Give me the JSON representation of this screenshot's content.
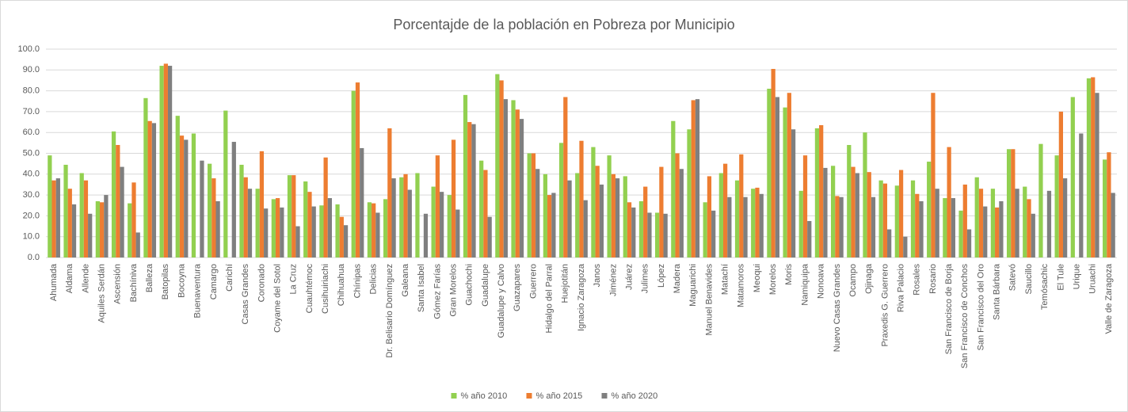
{
  "chart_data": {
    "type": "bar",
    "title": "Porcentajde de la población en Pobreza por Municipio",
    "categories": [
      "Ahumada",
      "Aldama",
      "Allende",
      "Aquiles Serdán",
      "Ascensión",
      "Bachíniva",
      "Balleza",
      "Batopilas",
      "Bocoyna",
      "Buenaventura",
      "Camargo",
      "Carichí",
      "Casas Grandes",
      "Coronado",
      "Coyame del Sotol",
      "La Cruz",
      "Cuauhtémoc",
      "Cusihuiriachi",
      "Chihuahua",
      "Chínipas",
      "Delicias",
      "Dr. Belisario Domínguez",
      "Galeana",
      "Santa Isabel",
      "Gómez Farías",
      "Gran Morelos",
      "Guachochi",
      "Guadalupe",
      "Guadalupe y Calvo",
      "Guazapares",
      "Guerrero",
      "Hidalgo del Parral",
      "Huejotitán",
      "Ignacio Zaragoza",
      "Janos",
      "Jiménez",
      "Juárez",
      "Julimes",
      "López",
      "Madera",
      "Maguarichi",
      "Manuel Benavides",
      "Matachí",
      "Matamoros",
      "Meoqui",
      "Morelos",
      "Moris",
      "Namiquipa",
      "Nonoava",
      "Nuevo Casas Grandes",
      "Ocampo",
      "Ojinaga",
      "Praxedis G. Guerrero",
      "Riva Palacio",
      "Rosales",
      "Rosario",
      "San Francisco de Borja",
      "San Francisco de Conchos",
      "San Francisco del Oro",
      "Santa Bárbara",
      "Satevó",
      "Saucillo",
      "Temósachic",
      "El Tule",
      "Urique",
      "Uruachi",
      "Valle de Zaragoza"
    ],
    "series": [
      {
        "name": "% año 2010",
        "color": "#92d050",
        "values": [
          49,
          44.5,
          40.5,
          27,
          60.5,
          26,
          76.5,
          92,
          68,
          59.5,
          45,
          70.5,
          44.5,
          33,
          28,
          39.5,
          36.5,
          25,
          25.5,
          80,
          26.5,
          28,
          38.5,
          40.5,
          34,
          30,
          78,
          46.5,
          88,
          75.5,
          50,
          40,
          55,
          40.5,
          53,
          49,
          39,
          27,
          21.5,
          65.5,
          61.5,
          26.5,
          40.5,
          37,
          33,
          81,
          72,
          32,
          62,
          44,
          54,
          60,
          37,
          34.5,
          37,
          46,
          28.5,
          22.5,
          38.5,
          33,
          52,
          34,
          54.5,
          49,
          77,
          86,
          47
        ]
      },
      {
        "name": "% año 2015",
        "color": "#ed7d31",
        "values": [
          37,
          33,
          37,
          26.5,
          54,
          36,
          65.5,
          93,
          58.5,
          null,
          38,
          null,
          38.5,
          51,
          28.5,
          39.5,
          31.5,
          48,
          19.5,
          84,
          26,
          62,
          40,
          null,
          49,
          56.5,
          65,
          42,
          85,
          71,
          50,
          30,
          77,
          56,
          44,
          40,
          26.5,
          34,
          43.5,
          50,
          75.5,
          39,
          45,
          49.5,
          33.5,
          90.5,
          79,
          49,
          63.5,
          29.5,
          43.5,
          41,
          35.5,
          42,
          30.5,
          79,
          53,
          35,
          33,
          24,
          52,
          28,
          null,
          70,
          null,
          86.5,
          50.5
        ]
      },
      {
        "name": "% año 2020",
        "color": "#7f7f7f",
        "values": [
          38,
          25.5,
          21,
          30,
          43.5,
          12,
          64.5,
          92,
          56.5,
          46.5,
          27,
          55.5,
          33,
          23.5,
          24,
          15,
          24.5,
          28.5,
          15.5,
          52.5,
          21.5,
          38,
          32.5,
          21,
          31.5,
          23,
          64,
          19.5,
          76,
          66.5,
          42.5,
          31,
          37,
          27.5,
          35,
          38,
          24,
          21.5,
          21,
          42.5,
          76,
          22.5,
          29,
          29,
          30.5,
          77,
          61.5,
          17.5,
          43,
          29,
          40.5,
          29,
          13.5,
          10,
          27,
          33,
          28.5,
          13.5,
          24.5,
          27,
          33,
          21,
          32,
          38,
          59.5,
          79,
          31
        ]
      }
    ],
    "ylim": [
      0,
      100
    ],
    "yticks": [
      {
        "value": 0,
        "label": "0.0"
      },
      {
        "value": 10,
        "label": "10.0"
      },
      {
        "value": 20,
        "label": "20.0"
      },
      {
        "value": 30,
        "label": "30.0"
      },
      {
        "value": 40,
        "label": "40.0"
      },
      {
        "value": 50,
        "label": "50.0"
      },
      {
        "value": 60,
        "label": "60.0"
      },
      {
        "value": 70,
        "label": "70.0"
      },
      {
        "value": 80,
        "label": "80.0"
      },
      {
        "value": 90,
        "label": "90.0"
      },
      {
        "value": 100,
        "label": "100.0"
      }
    ],
    "grid": true,
    "legend": "bottom"
  }
}
